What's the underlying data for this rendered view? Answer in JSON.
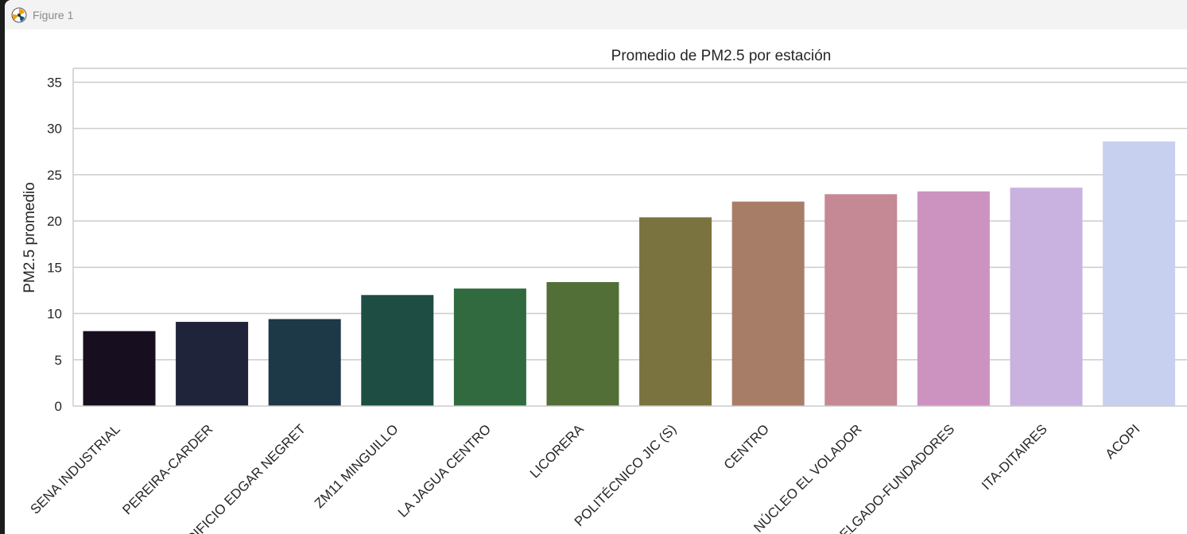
{
  "window": {
    "title": "Figure 1"
  },
  "chart_data": {
    "type": "bar",
    "title": "Promedio de PM2.5 por estación",
    "xlabel": "",
    "ylabel": "PM2.5 promedio",
    "ylim": [
      0,
      36.5
    ],
    "yticks": [
      0,
      5,
      10,
      15,
      20,
      25,
      30,
      35
    ],
    "grid": true,
    "categories": [
      "SENA INDUSTRIAL",
      "PEREIRA-CARDER",
      "EDIFICIO EDGAR NEGRET",
      "ZM11 MINGUILLO",
      "LA JAGUA CENTRO",
      "LICORERA",
      "POLITÉCNICO JIC (S)",
      "CENTRO",
      "NÚCLEO EL VOLADOR",
      "DELGADO-FUNDADORES",
      "ITA-DITAIRES",
      "ACOPI"
    ],
    "values": [
      8.1,
      9.1,
      9.4,
      12.0,
      12.7,
      13.4,
      20.4,
      22.1,
      22.9,
      23.2,
      23.6,
      28.6
    ],
    "colors": [
      "#170f20",
      "#1f243b",
      "#1d3846",
      "#1d4d43",
      "#326a40",
      "#536f38",
      "#7b733f",
      "#a87d68",
      "#c58895",
      "#cc93c0",
      "#c9b2e0",
      "#c8d0ef"
    ]
  }
}
